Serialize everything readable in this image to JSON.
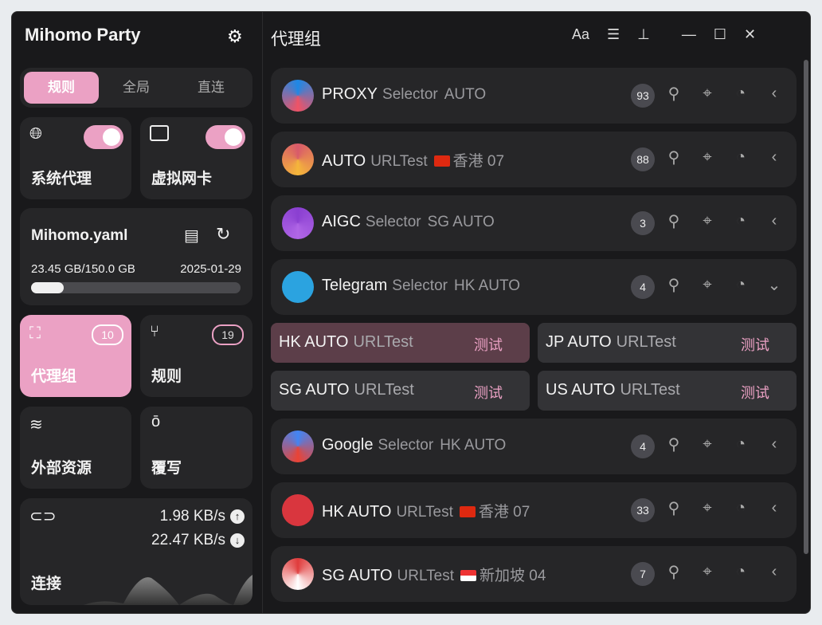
{
  "app": {
    "title": "Mihomo Party"
  },
  "modes": [
    {
      "label": "规则",
      "active": true
    },
    {
      "label": "全局",
      "active": false
    },
    {
      "label": "直连",
      "active": false
    }
  ],
  "toggles": [
    {
      "label": "系统代理",
      "icon": "globe-icon",
      "on": true
    },
    {
      "label": "虚拟网卡",
      "icon": "tun-icon",
      "on": true
    }
  ],
  "profile": {
    "name": "Mihomo.yaml",
    "usage": "23.45 GB/150.0 GB",
    "date": "2025-01-29",
    "progress": 0.156
  },
  "nav": [
    {
      "label": "代理组",
      "count": "10",
      "active": true
    },
    {
      "label": "规则",
      "count": "19"
    },
    {
      "label": "外部资源"
    },
    {
      "label": "覆写"
    }
  ],
  "traffic": {
    "label": "连接",
    "up": "1.98 KB/s",
    "down": "22.47 KB/s"
  },
  "header": {
    "title": "代理组"
  },
  "groups": [
    {
      "name": "PROXY",
      "type": "Selector",
      "now": "AUTO",
      "count": "93",
      "colors": [
        "#1e88e5",
        "#ef5366"
      ]
    },
    {
      "name": "AUTO",
      "type": "URLTest",
      "now": "香港 07",
      "flag": "hk",
      "count": "88",
      "colors": [
        "#d85a6a",
        "#f5b63a"
      ]
    },
    {
      "name": "AIGC",
      "type": "Selector",
      "now": "SG AUTO",
      "count": "3",
      "colors": [
        "#8a3fd1",
        "#b066e6"
      ]
    },
    {
      "name": "Telegram",
      "type": "Selector",
      "now": "HK AUTO",
      "count": "4",
      "expanded": true,
      "colors": [
        "#2ba3e0",
        "#2ba3e0"
      ]
    },
    {
      "name": "Google",
      "type": "Selector",
      "now": "HK AUTO",
      "count": "4",
      "colors": [
        "#4285f4",
        "#ea4335"
      ]
    },
    {
      "name": "HK AUTO",
      "type": "URLTest",
      "now": "香港 07",
      "flag": "hk",
      "count": "33",
      "colors": [
        "#d9363e",
        "#d9363e"
      ]
    },
    {
      "name": "SG AUTO",
      "type": "URLTest",
      "now": "新加坡 04",
      "flag": "sg",
      "count": "7",
      "colors": [
        "#e03c3c",
        "#ffffff"
      ]
    }
  ],
  "telegram_proxies": [
    {
      "name": "HK AUTO",
      "type": "URLTest",
      "test": "测试",
      "selected": true
    },
    {
      "name": "JP AUTO",
      "type": "URLTest",
      "test": "测试"
    },
    {
      "name": "SG AUTO",
      "type": "URLTest",
      "test": "测试"
    },
    {
      "name": "US AUTO",
      "type": "URLTest",
      "test": "测试"
    }
  ],
  "accent": "#eba1c4"
}
